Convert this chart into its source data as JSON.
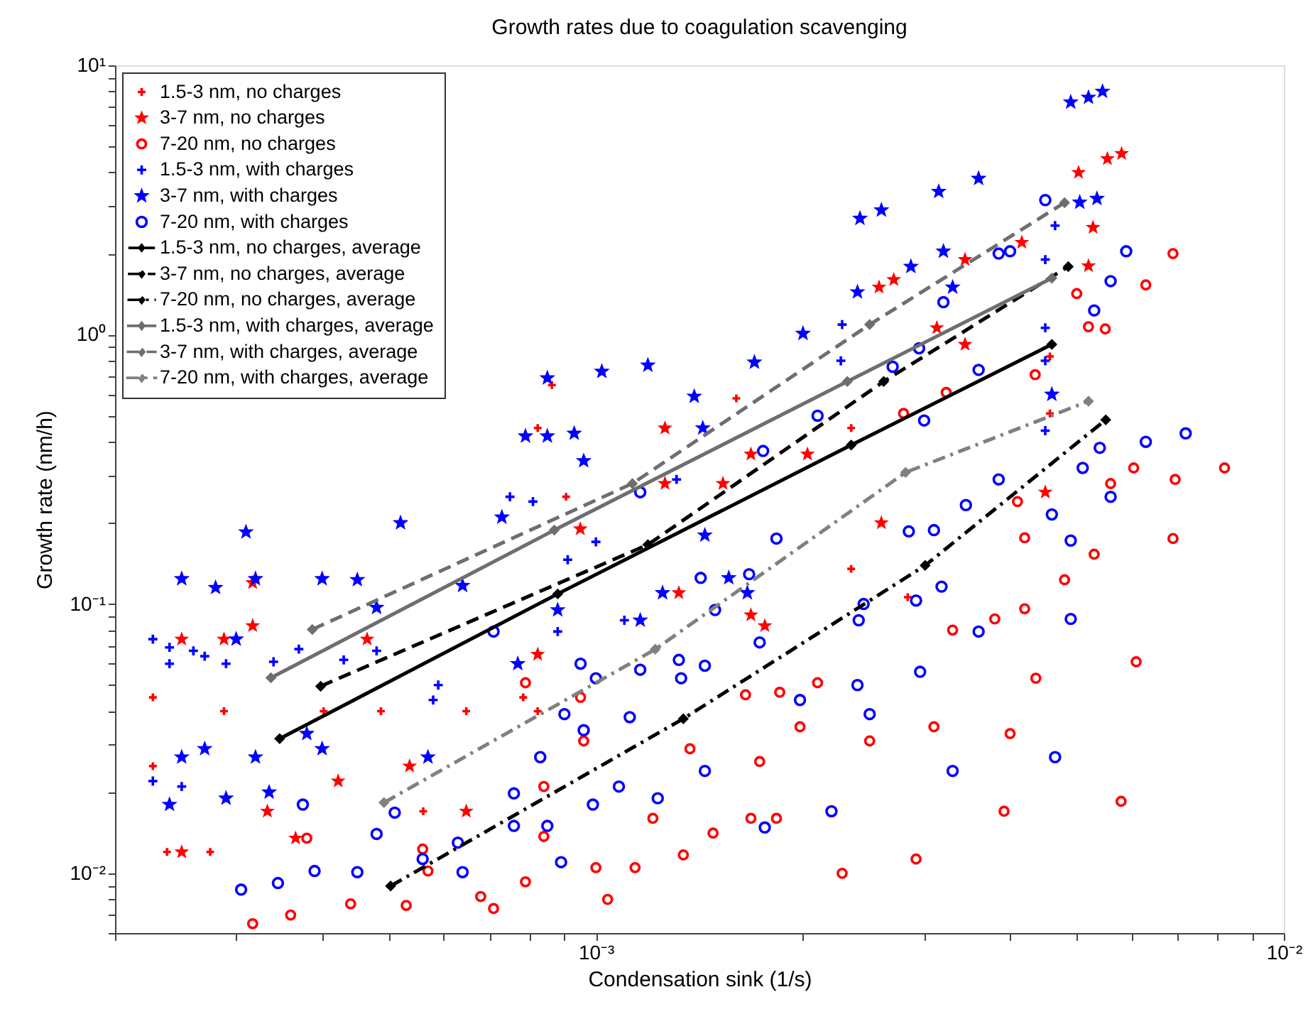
{
  "chart_data": {
    "type": "scatter",
    "title": "Growth rates due to coagulation scavenging",
    "xlabel": "Condensation sink (1/s)",
    "ylabel": "Growth rate (nm/h)",
    "log": "xy",
    "grid": false,
    "legend": "top left",
    "xlim": [
      0.0002,
      0.01
    ],
    "ylim": [
      0.006,
      10
    ],
    "xticks": [
      {
        "value": 0.0002,
        "label": null
      },
      {
        "value": 0.0003,
        "label": null
      },
      {
        "value": 0.0004,
        "label": null
      },
      {
        "value": 0.0005,
        "label": null
      },
      {
        "value": 0.0006,
        "label": null
      },
      {
        "value": 0.0007,
        "label": null
      },
      {
        "value": 0.0008,
        "label": null
      },
      {
        "value": 0.0009,
        "label": null
      },
      {
        "value": 0.001,
        "label": "10⁻³"
      },
      {
        "value": 0.002,
        "label": null
      },
      {
        "value": 0.003,
        "label": null
      },
      {
        "value": 0.004,
        "label": null
      },
      {
        "value": 0.005,
        "label": null
      },
      {
        "value": 0.006,
        "label": null
      },
      {
        "value": 0.007,
        "label": null
      },
      {
        "value": 0.008,
        "label": null
      },
      {
        "value": 0.009,
        "label": null
      },
      {
        "value": 0.01,
        "label": "10⁻²"
      }
    ],
    "yticks": [
      {
        "value": 0.006,
        "label": null
      },
      {
        "value": 0.007,
        "label": null
      },
      {
        "value": 0.008,
        "label": null
      },
      {
        "value": 0.009,
        "label": null
      },
      {
        "value": 0.01,
        "label": "10⁻²"
      },
      {
        "value": 0.02,
        "label": null
      },
      {
        "value": 0.03,
        "label": null
      },
      {
        "value": 0.04,
        "label": null
      },
      {
        "value": 0.05,
        "label": null
      },
      {
        "value": 0.06,
        "label": null
      },
      {
        "value": 0.07,
        "label": null
      },
      {
        "value": 0.08,
        "label": null
      },
      {
        "value": 0.09,
        "label": null
      },
      {
        "value": 0.1,
        "label": "10⁻¹"
      },
      {
        "value": 0.2,
        "label": null
      },
      {
        "value": 0.3,
        "label": null
      },
      {
        "value": 0.4,
        "label": null
      },
      {
        "value": 0.5,
        "label": null
      },
      {
        "value": 0.6,
        "label": null
      },
      {
        "value": 0.7,
        "label": null
      },
      {
        "value": 0.8,
        "label": null
      },
      {
        "value": 0.9,
        "label": null
      },
      {
        "value": 1,
        "label": "10⁰"
      },
      {
        "value": 2,
        "label": null
      },
      {
        "value": 3,
        "label": null
      },
      {
        "value": 4,
        "label": null
      },
      {
        "value": 5,
        "label": null
      },
      {
        "value": 6,
        "label": null
      },
      {
        "value": 7,
        "label": null
      },
      {
        "value": 8,
        "label": null
      },
      {
        "value": 9,
        "label": null
      },
      {
        "value": 10,
        "label": "10¹"
      }
    ],
    "series": [
      {
        "name": "1.5-3 nm, no charges",
        "marker": "cross",
        "color": "#ff0000",
        "x": [
          0.000227,
          0.000227,
          0.000238,
          0.000275,
          0.000288,
          0.000402,
          0.000487,
          0.000561,
          0.000648,
          0.000784,
          0.000823,
          0.000823,
          0.000863,
          0.000905,
          0.00126,
          0.0016,
          0.00235,
          0.00235,
          0.00284,
          0.00457,
          0.00457
        ],
        "values": [
          0.045,
          0.025,
          0.012,
          0.012,
          0.04,
          0.04,
          0.04,
          0.017,
          0.04,
          0.045,
          0.04,
          0.45,
          0.65,
          0.25,
          0.45,
          0.58,
          0.45,
          0.135,
          0.106,
          0.83,
          0.51
        ]
      },
      {
        "name": "3-7 nm, no charges",
        "marker": "star",
        "color": "#ff0000",
        "x": [
          0.00025,
          0.00025,
          0.000288,
          0.000317,
          0.000317,
          0.000333,
          0.000366,
          0.000422,
          0.000465,
          0.000536,
          0.000648,
          0.000823,
          0.000949,
          0.00126,
          0.00126,
          0.00132,
          0.00153,
          0.00168,
          0.00168,
          0.00176,
          0.00203,
          0.00258,
          0.0026,
          0.00271,
          0.00313,
          0.00344,
          0.00344,
          0.00416,
          0.0045,
          0.00503,
          0.0052,
          0.00528,
          0.00554,
          0.00581
        ],
        "values": [
          0.012,
          0.074,
          0.074,
          0.083,
          0.12,
          0.017,
          0.0135,
          0.022,
          0.074,
          0.025,
          0.017,
          0.065,
          0.19,
          0.28,
          0.45,
          0.11,
          0.28,
          0.36,
          0.091,
          0.083,
          0.36,
          1.5,
          0.2,
          1.6,
          1.06,
          0.92,
          1.9,
          2.2,
          0.26,
          4.0,
          1.8,
          2.5,
          4.5,
          4.7
        ]
      },
      {
        "name": "7-20 nm, no charges",
        "marker": "circle",
        "color": "#ff0000",
        "x": [
          0.000317,
          0.00036,
          0.00038,
          0.00044,
          0.00053,
          0.00056,
          0.00057,
          0.00068,
          0.00071,
          0.00079,
          0.00079,
          0.00084,
          0.00084,
          0.00096,
          0.00095,
          0.001,
          0.00104,
          0.00114,
          0.00121,
          0.00134,
          0.00148,
          0.00168,
          0.00183,
          0.00228,
          0.00292,
          0.00392,
          0.0058,
          0.00173,
          0.00198,
          0.0025,
          0.0031,
          0.004,
          0.00436,
          0.0061,
          0.0042,
          0.0038,
          0.0033,
          0.0069,
          0.0042,
          0.0053,
          0.0048,
          0.0021,
          0.00185,
          0.00165,
          0.00137,
          0.0069,
          0.0063,
          0.005,
          0.0052,
          0.0055,
          0.00435,
          0.0082,
          0.00695,
          0.00605,
          0.0028,
          0.00323,
          0.0041,
          0.0056
        ],
        "values": [
          0.0065,
          0.007,
          0.0135,
          0.0077,
          0.0076,
          0.0123,
          0.0102,
          0.0082,
          0.0074,
          0.0093,
          0.051,
          0.021,
          0.0137,
          0.031,
          0.045,
          0.0105,
          0.008,
          0.0105,
          0.016,
          0.0117,
          0.0141,
          0.016,
          0.016,
          0.01,
          0.0113,
          0.017,
          0.0185,
          0.026,
          0.035,
          0.031,
          0.035,
          0.033,
          0.053,
          0.061,
          0.096,
          0.088,
          0.08,
          0.175,
          0.176,
          0.153,
          0.123,
          0.051,
          0.047,
          0.046,
          0.029,
          2.0,
          1.53,
          1.42,
          1.07,
          1.05,
          0.71,
          0.32,
          0.29,
          0.32,
          0.51,
          0.61,
          0.24,
          0.28
        ]
      },
      {
        "name": "1.5-3 nm, with charges",
        "marker": "cross",
        "color": "#0000ff",
        "x": [
          0.000227,
          0.00024,
          0.00024,
          0.00026,
          0.00027,
          0.00029,
          0.000227,
          0.00025,
          0.00034,
          0.00037,
          0.00043,
          0.00048,
          0.00059,
          0.00058,
          0.00075,
          0.00081,
          0.00091,
          0.001,
          0.00088,
          0.0011,
          0.00228,
          0.00465,
          0.0045,
          0.0045,
          0.0045,
          0.00131,
          0.00227,
          0.0045
        ],
        "values": [
          0.074,
          0.069,
          0.06,
          0.067,
          0.064,
          0.06,
          0.022,
          0.021,
          0.061,
          0.068,
          0.062,
          0.067,
          0.05,
          0.044,
          0.25,
          0.24,
          0.146,
          0.17,
          0.079,
          0.087,
          1.09,
          2.54,
          1.9,
          1.06,
          0.8,
          0.29,
          0.8,
          0.44
        ]
      },
      {
        "name": "3-7 nm, with charges",
        "marker": "star",
        "color": "#0000ff",
        "x": [
          0.00025,
          0.00028,
          0.00031,
          0.00032,
          0.0003,
          0.00025,
          0.00027,
          0.00024,
          0.00029,
          0.00032,
          0.000335,
          0.00038,
          0.0004,
          0.00045,
          0.0004,
          0.00048,
          0.00052,
          0.00057,
          0.00064,
          0.00073,
          0.00077,
          0.00088,
          0.00116,
          0.00085,
          0.00102,
          0.00119,
          0.00079,
          0.00085,
          0.00093,
          0.00096,
          0.0049,
          0.0052,
          0.00545,
          0.00242,
          0.0026,
          0.00315,
          0.0036,
          0.0024,
          0.00287,
          0.0032,
          0.00535,
          0.00505,
          0.002,
          0.0017,
          0.00139,
          0.00143,
          0.0046,
          0.0033,
          0.00156,
          0.00166,
          0.00144,
          0.00125
        ],
        "values": [
          0.124,
          0.115,
          0.185,
          0.124,
          0.074,
          0.027,
          0.029,
          0.018,
          0.019,
          0.027,
          0.02,
          0.033,
          0.124,
          0.123,
          0.029,
          0.097,
          0.2,
          0.027,
          0.117,
          0.21,
          0.06,
          0.095,
          0.087,
          0.69,
          0.73,
          0.77,
          0.42,
          0.42,
          0.43,
          0.34,
          7.3,
          7.6,
          8.0,
          2.7,
          2.9,
          3.4,
          3.8,
          1.44,
          1.79,
          2.04,
          3.2,
          3.1,
          1.01,
          0.79,
          0.59,
          0.45,
          0.6,
          1.5,
          0.125,
          0.11,
          0.18,
          0.11
        ]
      },
      {
        "name": "7-20 nm, with charges",
        "marker": "circle",
        "color": "#0000ff",
        "x": [
          0.000305,
          0.000345,
          0.000375,
          0.00039,
          0.00045,
          0.00048,
          0.00051,
          0.00056,
          0.00063,
          0.00064,
          0.00071,
          0.00076,
          0.00076,
          0.00083,
          0.00085,
          0.00089,
          0.0009,
          0.00095,
          0.00096,
          0.00099,
          0.001,
          0.00108,
          0.00112,
          0.00116,
          0.00123,
          0.00183,
          0.00142,
          0.00167,
          0.00149,
          0.00173,
          0.00132,
          0.00144,
          0.00133,
          0.00144,
          0.00176,
          0.0022,
          0.00198,
          0.0024,
          0.0025,
          0.00296,
          0.0033,
          0.00465,
          0.0049,
          0.0036,
          0.00292,
          0.00318,
          0.0031,
          0.00285,
          0.00345,
          0.00241,
          0.00245,
          0.0046,
          0.0049,
          0.0056,
          0.0072,
          0.0063,
          0.0056,
          0.0059,
          0.0045,
          0.004,
          0.00385,
          0.0053,
          0.0032,
          0.0036,
          0.0027,
          0.003,
          0.0021,
          0.00175,
          0.00116,
          0.00295,
          0.00385,
          0.0054,
          0.0051
        ],
        "values": [
          0.0087,
          0.0092,
          0.018,
          0.0102,
          0.0101,
          0.014,
          0.0168,
          0.0113,
          0.013,
          0.0101,
          0.079,
          0.0198,
          0.015,
          0.027,
          0.015,
          0.011,
          0.039,
          0.06,
          0.034,
          0.018,
          0.053,
          0.021,
          0.038,
          0.057,
          0.019,
          0.175,
          0.125,
          0.129,
          0.095,
          0.072,
          0.062,
          0.059,
          0.053,
          0.024,
          0.0148,
          0.017,
          0.044,
          0.05,
          0.039,
          0.056,
          0.024,
          0.027,
          0.088,
          0.079,
          0.103,
          0.116,
          0.188,
          0.186,
          0.233,
          0.087,
          0.1,
          0.215,
          0.172,
          0.25,
          0.43,
          0.4,
          1.58,
          2.04,
          3.16,
          2.04,
          2.0,
          1.23,
          1.32,
          0.74,
          0.76,
          0.48,
          0.5,
          0.37,
          0.26,
          0.89,
          0.29,
          0.38,
          0.32
        ]
      },
      {
        "name": "1.5-3 nm, no charges, average",
        "type": "line",
        "marker": "diamond",
        "line_style": "solid",
        "color": "#000000",
        "x": [
          0.000347,
          0.00088,
          0.00235,
          0.0046
        ],
        "values": [
          0.0316,
          0.109,
          0.389,
          0.92
        ]
      },
      {
        "name": "3-7 nm, no charges, average",
        "type": "line",
        "marker": "diamond",
        "line_style": "dashed",
        "color": "#000000",
        "x": [
          0.000398,
          0.00119,
          0.00262,
          0.00486
        ],
        "values": [
          0.0495,
          0.166,
          0.67,
          1.79
        ]
      },
      {
        "name": "7-20 nm, no charges, average",
        "type": "line",
        "marker": "diamond",
        "line_style": "dashdot",
        "color": "#000000",
        "x": [
          0.000503,
          0.00134,
          0.00301,
          0.00551
        ],
        "values": [
          0.00897,
          0.0375,
          0.139,
          0.483
        ]
      },
      {
        "name": "1.5-3 nm, with charges, average",
        "type": "line",
        "marker": "diamond",
        "line_style": "solid",
        "color": "#6e6e6e",
        "x": [
          0.000337,
          0.00087,
          0.00232,
          0.0046
        ],
        "values": [
          0.0532,
          0.188,
          0.67,
          1.62
        ]
      },
      {
        "name": "3-7 nm, with charges, average",
        "type": "line",
        "marker": "diamond",
        "line_style": "dashed",
        "color": "#6e6e6e",
        "x": [
          0.000387,
          0.00113,
          0.0025,
          0.0048
        ],
        "values": [
          0.0804,
          0.28,
          1.09,
          3.09
        ]
      },
      {
        "name": "7-20 nm, with charges, average",
        "type": "line",
        "marker": "diamond",
        "line_style": "dashdot",
        "color": "#808080",
        "x": [
          0.000492,
          0.00122,
          0.00282,
          0.0052
        ],
        "values": [
          0.0183,
          0.0679,
          0.308,
          0.566
        ]
      }
    ]
  }
}
